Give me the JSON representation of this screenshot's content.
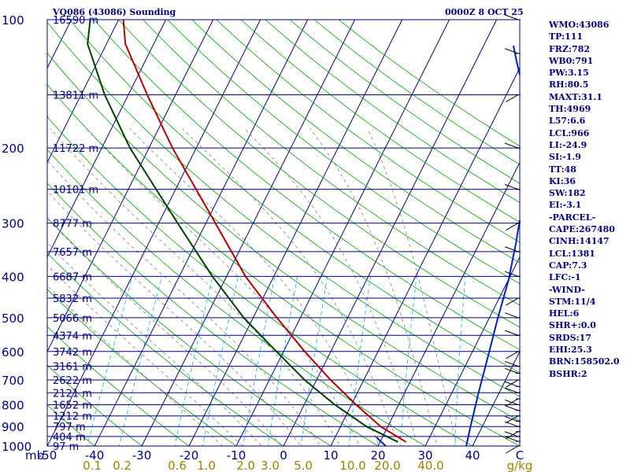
{
  "chart_data": {
    "type": "line",
    "station_title": "VQ086 (43086) Sounding",
    "valid_time": "0000Z 8 OCT 25",
    "y_axis": {
      "unit": "mb",
      "scale": "log",
      "range": [
        1000,
        100
      ],
      "pressure_ticks": [
        100,
        200,
        300,
        400,
        500,
        600,
        700,
        800,
        900,
        1000
      ]
    },
    "x_axis": {
      "unit": "C",
      "range": [
        -50,
        50
      ],
      "temp_ticks": [
        -50,
        -40,
        -30,
        -20,
        -10,
        0,
        10,
        20,
        30,
        40
      ]
    },
    "mixing_ratio": {
      "unit": "g/kg",
      "labels": [
        "0.1",
        "0.2",
        "0.6",
        "1.0",
        "2.0",
        "3.0",
        "5.0",
        "10.0",
        "20.0",
        "40.0"
      ]
    },
    "height_levels": [
      {
        "p": 100,
        "label": "16590 m"
      },
      {
        "p": 150,
        "label": "13811 m"
      },
      {
        "p": 200,
        "label": "11722 m"
      },
      {
        "p": 250,
        "label": "10101 m"
      },
      {
        "p": 300,
        "label": "8777 m"
      },
      {
        "p": 350,
        "label": "7657 m"
      },
      {
        "p": 400,
        "label": "6687 m"
      },
      {
        "p": 450,
        "label": "5832 m"
      },
      {
        "p": 500,
        "label": "5066 m"
      },
      {
        "p": 550,
        "label": "4374 m"
      },
      {
        "p": 600,
        "label": "3742 m"
      },
      {
        "p": 650,
        "label": "3161 m"
      },
      {
        "p": 700,
        "label": "2622 m"
      },
      {
        "p": 750,
        "label": "2121 m"
      },
      {
        "p": 800,
        "label": "1652 m"
      },
      {
        "p": 850,
        "label": "1212 m"
      },
      {
        "p": 900,
        "label": "797 m"
      },
      {
        "p": 950,
        "label": "404 m"
      },
      {
        "p": 1000,
        "label": "97 m"
      }
    ],
    "series": [
      {
        "color": "#b00000",
        "points": [
          {
            "p": 978,
            "t": 25.5
          },
          {
            "p": 900,
            "t": 18.5
          },
          {
            "p": 800,
            "t": 11
          },
          {
            "p": 700,
            "t": 3
          },
          {
            "p": 600,
            "t": -5.5
          },
          {
            "p": 500,
            "t": -15
          },
          {
            "p": 400,
            "t": -26
          },
          {
            "p": 300,
            "t": -38
          },
          {
            "p": 200,
            "t": -55
          },
          {
            "p": 150,
            "t": -66
          },
          {
            "p": 114,
            "t": -76
          },
          {
            "p": 100,
            "t": -79
          }
        ]
      },
      {
        "color": "#004000",
        "points": [
          {
            "p": 978,
            "t": 23.8
          },
          {
            "p": 900,
            "t": 15.5
          },
          {
            "p": 800,
            "t": 6.5
          },
          {
            "p": 700,
            "t": -2.5
          },
          {
            "p": 600,
            "t": -11.5
          },
          {
            "p": 500,
            "t": -22
          },
          {
            "p": 400,
            "t": -33
          },
          {
            "p": 300,
            "t": -46
          },
          {
            "p": 200,
            "t": -64
          },
          {
            "p": 150,
            "t": -75
          },
          {
            "p": 114,
            "t": -84
          },
          {
            "p": 100,
            "t": -86
          }
        ]
      }
    ],
    "indices": [
      "WMO:43086",
      "TP:111",
      "FRZ:782",
      "WB0:791",
      "PW:3.15",
      "RH:80.5",
      "MAXT:31.1",
      "TH:4969",
      "L57:6.6",
      "LCL:966",
      "LI:-24.9",
      "SI:-1.9",
      "TT:48",
      "KI:36",
      "SW:182",
      "EI:-3.1",
      "-PARCEL-",
      "CAPE:267480",
      "CINH:14147",
      "LCL:1381",
      "CAP:7.3",
      "LFC:-1",
      "-WIND-",
      "STM:11/4",
      "HEL:6",
      "SHR+:0.0",
      "SRDS:17",
      "EHI:25.3",
      "BRN:158502.0",
      "BSHR:2"
    ],
    "colors": {
      "frame": "#000080",
      "isobar": "#000080",
      "isotherm": "#000080",
      "dry_adiabat": "#00a000",
      "moist_adiabat": "#808080",
      "mixing_ratio": "#00b0ff",
      "mixing_label": "#a08000",
      "temperature": "#b00000",
      "dewpoint": "#004000",
      "hodograph": "#0020c0",
      "wind": "#000000"
    }
  }
}
